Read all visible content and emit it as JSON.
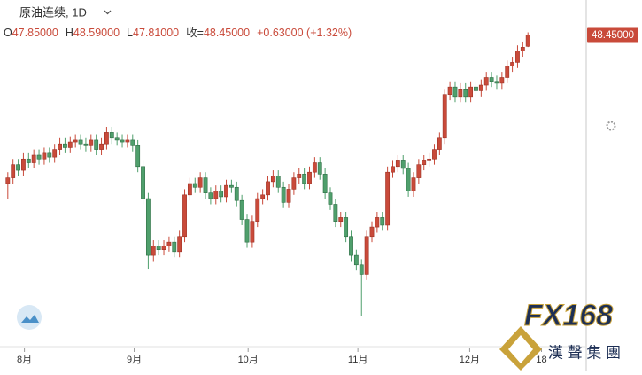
{
  "chart_data": {
    "type": "candlestick",
    "title": "原油连续, 1D",
    "ohlc_header": [
      {
        "key": "O",
        "value": "47.85000"
      },
      {
        "key": "H",
        "value": "48.59000"
      },
      {
        "key": "L",
        "value": "47.81000"
      },
      {
        "key": "收=",
        "value": "48.45000"
      },
      {
        "key": "",
        "value": "+0.63000 (+1.32%)"
      }
    ],
    "price_label": {
      "value": 48.45,
      "label": "48.45000"
    },
    "up_color": "#c94a3a",
    "down_color": "#4f9f6c",
    "open": [
      40.6,
      40.9,
      41.6,
      41.3,
      41.9,
      41.7,
      42.1,
      41.9,
      42.2,
      42.0,
      42.4,
      42.7,
      42.5,
      42.8,
      42.9,
      42.7,
      42.6,
      42.9,
      42.4,
      42.7,
      43.3,
      43.0,
      42.9,
      42.8,
      42.9,
      42.6,
      41.5,
      39.8,
      36.8,
      37.3,
      37.1,
      37.3,
      37.5,
      37.0,
      37.8,
      40.0,
      40.6,
      40.4,
      40.9,
      40.1,
      39.8,
      40.2,
      39.9,
      40.5,
      40.4,
      39.7,
      38.7,
      37.5,
      38.6,
      39.8,
      40.0,
      40.7,
      41.0,
      40.4,
      39.6,
      40.3,
      40.9,
      41.1,
      40.6,
      41.2,
      41.7,
      41.1,
      40.1,
      39.5,
      38.6,
      38.8,
      37.8,
      36.8,
      36.3,
      35.8,
      37.8,
      38.3,
      38.8,
      38.4,
      41.2,
      41.5,
      41.8,
      41.4,
      40.2,
      40.9,
      41.6,
      41.8,
      41.9,
      42.4,
      43.0,
      45.3,
      45.7,
      45.2,
      45.6,
      45.2,
      45.7,
      45.5,
      45.8,
      46.2,
      46.0,
      45.9,
      46.2,
      46.8,
      47.0,
      47.6,
      47.85
    ],
    "high": [
      41.2,
      41.9,
      41.9,
      42.2,
      42.2,
      42.4,
      42.4,
      42.5,
      42.5,
      42.7,
      43.0,
      43.0,
      43.1,
      43.2,
      43.2,
      43.0,
      43.2,
      43.2,
      43.0,
      43.6,
      43.6,
      43.3,
      43.2,
      43.2,
      43.2,
      42.9,
      41.8,
      40.1,
      37.6,
      37.6,
      37.6,
      37.8,
      37.8,
      38.1,
      40.3,
      40.9,
      40.9,
      41.2,
      41.2,
      40.4,
      40.5,
      40.5,
      40.8,
      40.8,
      40.7,
      40.0,
      39.0,
      38.9,
      40.1,
      40.3,
      41.0,
      41.3,
      41.3,
      40.7,
      40.6,
      41.2,
      41.4,
      41.4,
      41.5,
      42.0,
      42.0,
      41.4,
      40.4,
      39.8,
      39.1,
      39.1,
      38.1,
      37.1,
      36.6,
      38.1,
      38.6,
      39.1,
      39.1,
      41.5,
      41.8,
      42.1,
      42.1,
      41.7,
      41.2,
      41.9,
      42.1,
      42.2,
      42.7,
      43.3,
      45.6,
      46.0,
      46.0,
      45.9,
      45.9,
      46.0,
      46.0,
      46.1,
      46.5,
      46.5,
      46.3,
      46.5,
      47.1,
      47.3,
      47.9,
      48.1,
      48.59
    ],
    "low": [
      39.8,
      40.6,
      41.0,
      41.0,
      41.4,
      41.4,
      41.6,
      41.6,
      41.7,
      41.7,
      42.1,
      42.2,
      42.2,
      42.5,
      42.4,
      42.3,
      42.3,
      42.1,
      42.1,
      42.4,
      42.7,
      42.6,
      42.5,
      42.5,
      42.3,
      41.2,
      39.5,
      36.1,
      36.5,
      36.8,
      36.8,
      37.0,
      36.7,
      36.7,
      37.5,
      39.7,
      40.1,
      40.1,
      39.8,
      39.5,
      39.5,
      39.6,
      39.6,
      40.1,
      39.4,
      38.4,
      37.2,
      37.2,
      38.3,
      39.5,
      39.7,
      40.4,
      40.1,
      39.3,
      39.3,
      40.0,
      40.6,
      40.3,
      40.3,
      40.9,
      40.8,
      39.8,
      39.2,
      38.3,
      38.3,
      37.5,
      36.5,
      36.0,
      33.6,
      35.5,
      37.5,
      38.0,
      38.1,
      38.1,
      40.9,
      41.2,
      41.1,
      39.9,
      39.9,
      40.6,
      41.3,
      41.5,
      41.6,
      42.1,
      42.7,
      45.0,
      44.9,
      44.9,
      44.9,
      44.9,
      45.2,
      45.2,
      45.5,
      45.7,
      45.6,
      45.6,
      45.9,
      46.5,
      46.7,
      47.3,
      47.81
    ],
    "close": [
      40.9,
      41.6,
      41.3,
      41.9,
      41.7,
      42.1,
      41.9,
      42.2,
      42.0,
      42.4,
      42.7,
      42.5,
      42.8,
      42.9,
      42.7,
      42.6,
      42.9,
      42.4,
      42.7,
      43.3,
      43.0,
      42.9,
      42.8,
      42.9,
      42.6,
      41.5,
      39.8,
      36.8,
      37.3,
      37.1,
      37.3,
      37.5,
      37.0,
      37.8,
      40.0,
      40.6,
      40.4,
      40.9,
      40.1,
      39.8,
      40.2,
      39.9,
      40.5,
      40.4,
      39.7,
      38.7,
      37.5,
      38.6,
      39.8,
      40.0,
      40.7,
      41.0,
      40.4,
      39.6,
      40.3,
      40.9,
      41.1,
      40.6,
      41.2,
      41.7,
      41.1,
      40.1,
      39.5,
      38.6,
      38.8,
      37.8,
      36.8,
      36.3,
      35.8,
      37.8,
      38.3,
      38.8,
      38.4,
      41.2,
      41.5,
      41.8,
      41.4,
      40.2,
      40.9,
      41.6,
      41.8,
      41.9,
      42.4,
      43.0,
      45.3,
      45.7,
      45.2,
      45.6,
      45.2,
      45.7,
      45.5,
      45.8,
      46.2,
      46.0,
      45.9,
      46.2,
      46.8,
      47.0,
      47.6,
      47.8,
      48.45
    ],
    "xlim": [
      -1.5,
      111.2
    ],
    "ylim": [
      32.4,
      50.3
    ],
    "xticks": [
      {
        "value": 3.2,
        "label": "8月"
      },
      {
        "value": 24.3,
        "label": "9月"
      },
      {
        "value": 46.2,
        "label": "10月"
      },
      {
        "value": 67.3,
        "label": "11月"
      },
      {
        "value": 88.8,
        "label": "12月"
      },
      {
        "value": 102.6,
        "label": "18"
      }
    ],
    "watermark": {
      "brand": "FX168",
      "sub": "漢 聲 集 團"
    }
  }
}
